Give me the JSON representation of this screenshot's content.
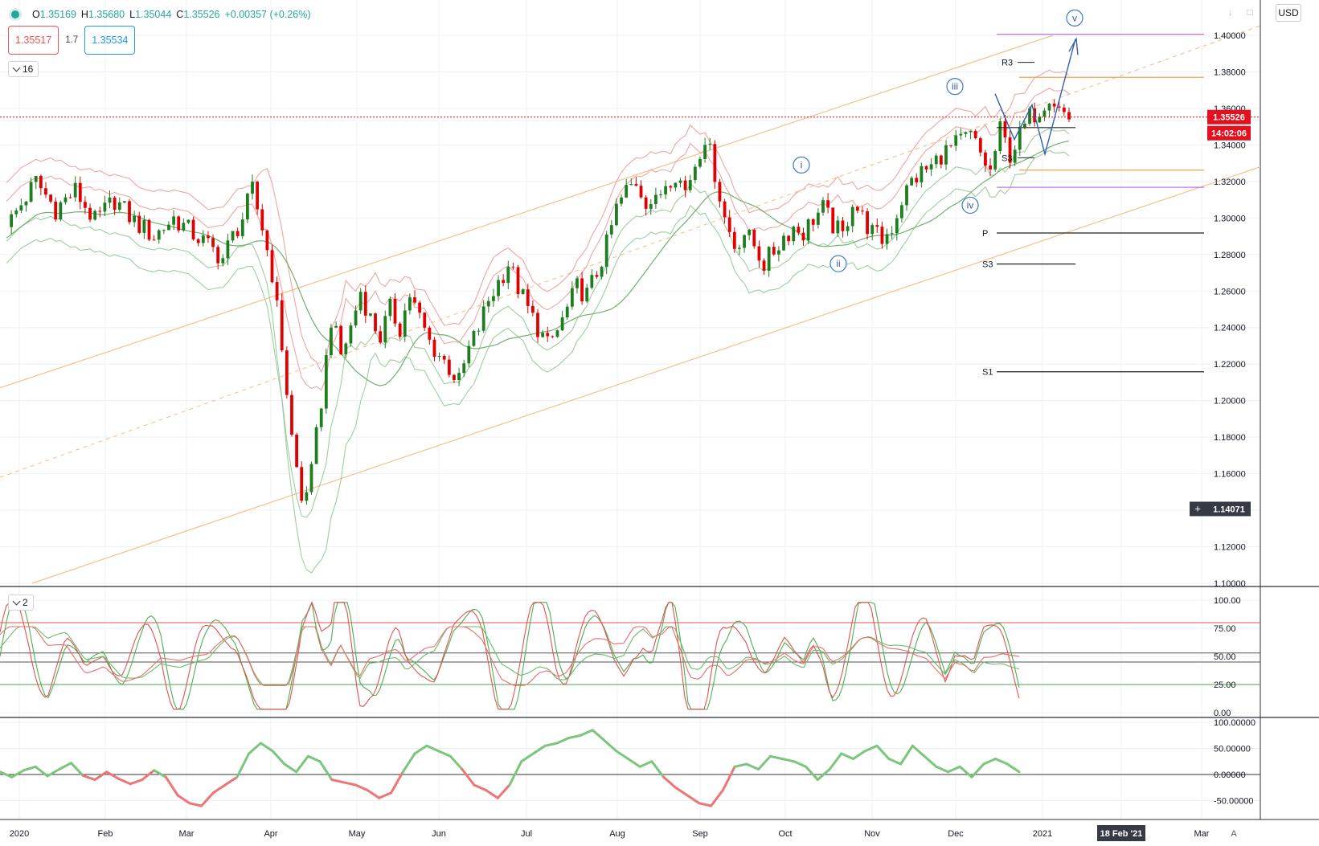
{
  "header": {
    "open_label": "O",
    "open": "1.35169",
    "high_label": "H",
    "high": "1.35680",
    "low_label": "L",
    "low": "1.35044",
    "close_label": "C",
    "close": "1.35526",
    "change": "+0.00357 (+0.26%)",
    "bid": "1.35517",
    "spread": "1.7",
    "ask": "1.35534",
    "currency": "USD"
  },
  "indicators": {
    "main_collapsed_count": "16",
    "stoch_collapsed_count": "2"
  },
  "icons": {
    "status": "status-dot-icon",
    "toolbar": [
      "arrow-down-icon",
      "maximize-icon"
    ],
    "crosshair": "crosshair-plus-icon",
    "collapse": "chevron-down-icon"
  },
  "colors": {
    "up": "#26a69a",
    "candle_up": "#1e7d1e",
    "candle_down": "#e00000",
    "price_tag": "#e3101e",
    "elliott": "#2962ff",
    "channel": "#f5c08a",
    "envelope_upper": "#f19a9a",
    "envelope_lower": "#94c994",
    "pivot_purple": "#c576e6",
    "pivot_orange": "#f0a54a"
  },
  "chart_data": [
    {
      "type": "candlestick",
      "symbol_quote": "USD",
      "x": [
        "2020",
        "Feb",
        "Mar",
        "Apr",
        "May",
        "Jun",
        "Jul",
        "Aug",
        "Sep",
        "Oct",
        "Nov",
        "Dec",
        "2021",
        "Feb",
        "Mar"
      ],
      "yticks": [
        "1.40000",
        "1.38000",
        "1.36000",
        "1.34000",
        "1.32000",
        "1.30000",
        "1.28000",
        "1.26000",
        "1.24000",
        "1.22000",
        "1.20000",
        "1.18000",
        "1.16000",
        "1.14000",
        "1.12000",
        "1.10000"
      ],
      "ylim": [
        1.1,
        1.41
      ],
      "last_price": "1.35526",
      "countdown": "14:02:06",
      "crosshair_price": "1.14071",
      "crosshair_date": "18 Feb '21",
      "price_path": [
        [
          0,
          1.295
        ],
        [
          6,
          1.32
        ],
        [
          10,
          1.305
        ],
        [
          14,
          1.315
        ],
        [
          18,
          1.298
        ],
        [
          22,
          1.31
        ],
        [
          26,
          1.298
        ],
        [
          30,
          1.29
        ],
        [
          34,
          1.3
        ],
        [
          40,
          1.287
        ],
        [
          44,
          1.278
        ],
        [
          46,
          1.29
        ],
        [
          48,
          1.3
        ],
        [
          50,
          1.315
        ],
        [
          52,
          1.295
        ],
        [
          54,
          1.27
        ],
        [
          56,
          1.23
        ],
        [
          58,
          1.18
        ],
        [
          60,
          1.145
        ],
        [
          62,
          1.16
        ],
        [
          64,
          1.2
        ],
        [
          66,
          1.245
        ],
        [
          68,
          1.225
        ],
        [
          70,
          1.24
        ],
        [
          72,
          1.26
        ],
        [
          74,
          1.245
        ],
        [
          76,
          1.235
        ],
        [
          78,
          1.25
        ],
        [
          80,
          1.24
        ],
        [
          82,
          1.258
        ],
        [
          84,
          1.245
        ],
        [
          86,
          1.232
        ],
        [
          88,
          1.225
        ],
        [
          90,
          1.218
        ],
        [
          92,
          1.21
        ],
        [
          94,
          1.228
        ],
        [
          96,
          1.24
        ],
        [
          98,
          1.255
        ],
        [
          100,
          1.265
        ],
        [
          102,
          1.275
        ],
        [
          104,
          1.262
        ],
        [
          106,
          1.25
        ],
        [
          108,
          1.24
        ],
        [
          110,
          1.23
        ],
        [
          112,
          1.238
        ],
        [
          114,
          1.25
        ],
        [
          116,
          1.262
        ],
        [
          118,
          1.258
        ],
        [
          120,
          1.27
        ],
        [
          122,
          1.285
        ],
        [
          124,
          1.305
        ],
        [
          126,
          1.315
        ],
        [
          128,
          1.32
        ],
        [
          130,
          1.31
        ],
        [
          132,
          1.308
        ],
        [
          134,
          1.32
        ],
        [
          136,
          1.325
        ],
        [
          138,
          1.315
        ],
        [
          140,
          1.33
        ],
        [
          142,
          1.345
        ],
        [
          144,
          1.325
        ],
        [
          146,
          1.3
        ],
        [
          148,
          1.285
        ],
        [
          150,
          1.292
        ],
        [
          152,
          1.285
        ],
        [
          154,
          1.275
        ],
        [
          156,
          1.282
        ],
        [
          158,
          1.29
        ],
        [
          160,
          1.295
        ],
        [
          162,
          1.292
        ],
        [
          164,
          1.3
        ],
        [
          166,
          1.305
        ],
        [
          168,
          1.296
        ],
        [
          170,
          1.29
        ],
        [
          172,
          1.31
        ],
        [
          174,
          1.3
        ],
        [
          176,
          1.292
        ],
        [
          178,
          1.288
        ],
        [
          180,
          1.295
        ],
        [
          182,
          1.31
        ],
        [
          184,
          1.32
        ],
        [
          186,
          1.325
        ],
        [
          188,
          1.328
        ],
        [
          190,
          1.335
        ],
        [
          192,
          1.338
        ],
        [
          194,
          1.342
        ],
        [
          196,
          1.345
        ],
        [
          198,
          1.335
        ],
        [
          200,
          1.325
        ],
        [
          202,
          1.348
        ],
        [
          204,
          1.335
        ],
        [
          206,
          1.345
        ],
        [
          208,
          1.355
        ],
        [
          210,
          1.36
        ],
        [
          212,
          1.368
        ],
        [
          214,
          1.36
        ],
        [
          216,
          1.355
        ]
      ],
      "wave_labels": [
        "i",
        "ii",
        "iii",
        "iv",
        "v"
      ],
      "pivot_labels": [
        "R3",
        "S3",
        "P",
        "S3",
        "S1"
      ]
    },
    {
      "type": "line",
      "name": "",
      "yticks": [
        "100.00",
        "75.00",
        "50.00",
        "25.00",
        "0.00"
      ],
      "ylim": [
        0,
        100
      ],
      "levels": [
        80,
        53,
        45,
        25
      ]
    },
    {
      "type": "line",
      "name": "",
      "yticks": [
        "100.00000",
        "50.00000",
        "0.00000",
        "-50.00000"
      ],
      "ylim": [
        -65,
        110
      ],
      "values_sample": [
        5,
        -5,
        8,
        15,
        -3,
        10,
        22,
        -2,
        -10,
        5,
        -8,
        -18,
        -10,
        8,
        -5,
        -40,
        -55,
        -60,
        -35,
        -20,
        -5,
        40,
        60,
        45,
        20,
        5,
        35,
        25,
        -10,
        -15,
        -20,
        -30,
        -45,
        -35,
        5,
        40,
        55,
        45,
        35,
        10,
        -20,
        -30,
        -45,
        -20,
        25,
        40,
        55,
        60,
        70,
        75,
        85,
        65,
        45,
        30,
        15,
        25,
        -5,
        -25,
        -40,
        -55,
        -60,
        -30,
        15,
        20,
        10,
        35,
        30,
        25,
        15,
        -10,
        10,
        40,
        30,
        45,
        55,
        30,
        20,
        55,
        35,
        15,
        5,
        15,
        -5,
        20,
        30,
        20,
        5
      ]
    }
  ]
}
